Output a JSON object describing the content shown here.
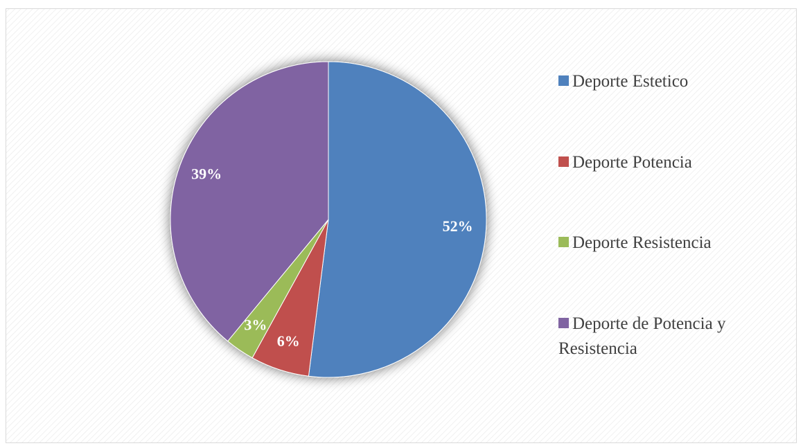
{
  "chart_data": {
    "type": "pie",
    "categories": [
      "Deporte Estetico",
      "Deporte Potencia",
      "Deporte Resistencia",
      "Deporte de Potencia y Resistencia"
    ],
    "values": [
      52,
      6,
      3,
      39
    ],
    "value_labels": [
      "52%",
      "6%",
      "3%",
      "39%"
    ],
    "colors": [
      "#4f81bd",
      "#c0504d",
      "#9bbb59",
      "#8064a2"
    ],
    "legend": "right"
  }
}
